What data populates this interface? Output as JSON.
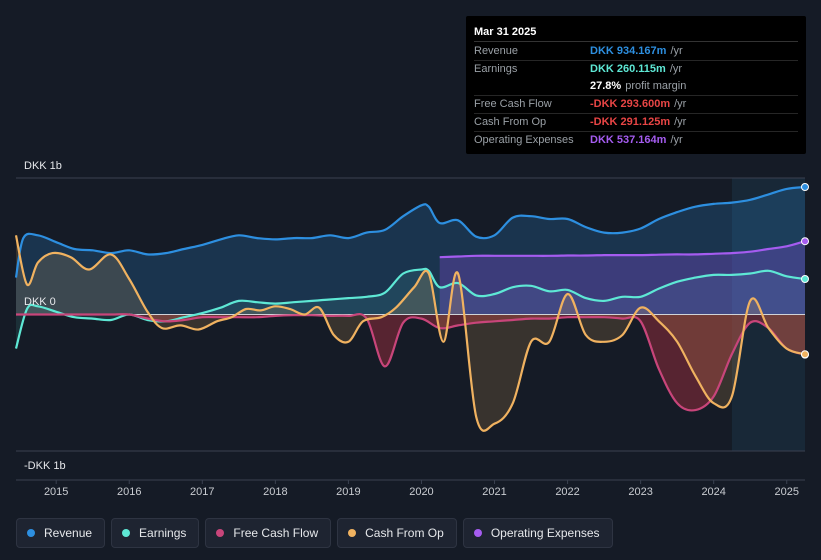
{
  "tooltip": {
    "date": "Mar 31 2025",
    "rows": [
      {
        "label": "Revenue",
        "value": "DKK 934.167m",
        "unit": "/yr",
        "color": "#2d8fe0"
      },
      {
        "label": "Earnings",
        "value": "DKK 260.115m",
        "unit": "/yr",
        "color": "#5ee8d5"
      },
      {
        "label": "",
        "value": "27.8%",
        "unit": "profit margin",
        "color": "#ffffff"
      },
      {
        "label": "Free Cash Flow",
        "value": "-DKK 293.600m",
        "unit": "/yr",
        "color": "#e84545"
      },
      {
        "label": "Cash From Op",
        "value": "-DKK 291.125m",
        "unit": "/yr",
        "color": "#e84545"
      },
      {
        "label": "Operating Expenses",
        "value": "DKK 537.164m",
        "unit": "/yr",
        "color": "#a55cf0"
      }
    ]
  },
  "legend": [
    {
      "label": "Revenue",
      "color": "#2d8fe0"
    },
    {
      "label": "Earnings",
      "color": "#5ee8d5"
    },
    {
      "label": "Free Cash Flow",
      "color": "#c8457a"
    },
    {
      "label": "Cash From Op",
      "color": "#f0b260"
    },
    {
      "label": "Operating Expenses",
      "color": "#a55cf0"
    }
  ],
  "chart_data": {
    "type": "area",
    "unit": "DKK m",
    "y_tick_labels": [
      "DKK 1b",
      "DKK 0",
      "-DKK 1b"
    ],
    "ylim": [
      -1000,
      1000
    ],
    "xlim": [
      2014.45,
      2025.25
    ],
    "x_tick_labels": [
      "2015",
      "2016",
      "2017",
      "2018",
      "2019",
      "2020",
      "2021",
      "2022",
      "2023",
      "2024",
      "2025"
    ],
    "x_ticks": [
      2015,
      2016,
      2017,
      2018,
      2019,
      2020,
      2021,
      2022,
      2023,
      2024,
      2025
    ],
    "highlight_start": 2024.25,
    "series": [
      {
        "name": "Revenue",
        "color": "#2d8fe0",
        "x": [
          2014.45,
          2014.55,
          2014.75,
          2015.0,
          2015.25,
          2015.5,
          2015.75,
          2016.0,
          2016.25,
          2016.5,
          2016.75,
          2017.0,
          2017.25,
          2017.5,
          2017.75,
          2018.0,
          2018.25,
          2018.5,
          2018.75,
          2019.0,
          2019.25,
          2019.5,
          2019.75,
          2020.0,
          2020.1,
          2020.25,
          2020.5,
          2020.75,
          2021.0,
          2021.25,
          2021.5,
          2021.75,
          2022.0,
          2022.25,
          2022.5,
          2022.75,
          2023.0,
          2023.25,
          2023.5,
          2023.75,
          2024.0,
          2024.25,
          2024.5,
          2024.75,
          2025.0,
          2025.25
        ],
        "y": [
          270,
          560,
          580,
          530,
          480,
          470,
          450,
          470,
          440,
          450,
          480,
          510,
          550,
          580,
          560,
          550,
          560,
          560,
          580,
          560,
          600,
          620,
          720,
          800,
          790,
          670,
          690,
          570,
          580,
          710,
          720,
          700,
          700,
          640,
          600,
          600,
          630,
          700,
          750,
          790,
          810,
          820,
          840,
          880,
          920,
          934
        ]
      },
      {
        "name": "Earnings",
        "color": "#5ee8d5",
        "x": [
          2014.45,
          2014.6,
          2014.75,
          2015.0,
          2015.25,
          2015.5,
          2015.75,
          2016.0,
          2016.25,
          2016.5,
          2016.75,
          2017.0,
          2017.25,
          2017.5,
          2017.75,
          2018.0,
          2018.25,
          2018.5,
          2018.75,
          2019.0,
          2019.25,
          2019.5,
          2019.75,
          2020.0,
          2020.1,
          2020.25,
          2020.5,
          2020.75,
          2021.0,
          2021.25,
          2021.5,
          2021.75,
          2022.0,
          2022.25,
          2022.5,
          2022.75,
          2023.0,
          2023.25,
          2023.5,
          2023.75,
          2024.0,
          2024.25,
          2024.5,
          2024.75,
          2025.0,
          2025.25
        ],
        "y": [
          -250,
          40,
          60,
          20,
          -20,
          -30,
          -40,
          0,
          -40,
          -50,
          -20,
          10,
          50,
          100,
          90,
          80,
          90,
          100,
          110,
          120,
          130,
          160,
          300,
          330,
          320,
          200,
          230,
          140,
          150,
          200,
          210,
          170,
          180,
          120,
          100,
          130,
          130,
          190,
          240,
          270,
          290,
          290,
          300,
          320,
          280,
          260
        ]
      },
      {
        "name": "Free Cash Flow",
        "color": "#c8457a",
        "x": [
          2014.45,
          2014.75,
          2015.0,
          2015.25,
          2015.5,
          2015.75,
          2016.0,
          2016.25,
          2016.5,
          2016.75,
          2017.0,
          2017.25,
          2017.5,
          2017.75,
          2018.0,
          2018.25,
          2018.5,
          2018.75,
          2019.0,
          2019.25,
          2019.5,
          2019.75,
          2020.0,
          2020.25,
          2020.5,
          2020.75,
          2021.0,
          2021.25,
          2021.5,
          2021.75,
          2022.0,
          2022.25,
          2022.5,
          2022.75,
          2023.0,
          2023.25,
          2023.5,
          2023.75,
          2024.0,
          2024.25,
          2024.5,
          2024.75,
          2025.0,
          2025.25
        ],
        "y": [
          0,
          0,
          0,
          0,
          0,
          0,
          0,
          -30,
          -50,
          -40,
          -20,
          -20,
          -20,
          -20,
          -10,
          -5,
          -5,
          -10,
          -10,
          -30,
          -380,
          -60,
          -30,
          -100,
          -80,
          -60,
          -50,
          -40,
          -30,
          -30,
          -20,
          -20,
          -20,
          -30,
          -50,
          -400,
          -650,
          -700,
          -600,
          -290,
          -60,
          -100,
          -250,
          -294
        ]
      },
      {
        "name": "Cash From Op",
        "color": "#f0b260",
        "x": [
          2014.45,
          2014.6,
          2014.75,
          2014.95,
          2015.2,
          2015.45,
          2015.75,
          2016.0,
          2016.25,
          2016.45,
          2016.7,
          2016.95,
          2017.2,
          2017.4,
          2017.6,
          2017.8,
          2018.0,
          2018.2,
          2018.4,
          2018.6,
          2018.8,
          2019.0,
          2019.2,
          2019.45,
          2019.65,
          2019.9,
          2020.1,
          2020.3,
          2020.5,
          2020.75,
          2021.0,
          2021.25,
          2021.5,
          2021.75,
          2022.0,
          2022.25,
          2022.5,
          2022.75,
          2023.0,
          2023.25,
          2023.5,
          2023.75,
          2024.0,
          2024.25,
          2024.5,
          2024.75,
          2025.0,
          2025.25
        ],
        "y": [
          580,
          220,
          380,
          450,
          420,
          330,
          440,
          260,
          20,
          -100,
          -80,
          -110,
          -50,
          -20,
          40,
          30,
          60,
          40,
          0,
          50,
          -150,
          -200,
          -50,
          -20,
          50,
          200,
          300,
          -200,
          300,
          -750,
          -800,
          -650,
          -200,
          -200,
          150,
          -150,
          -200,
          -150,
          50,
          -50,
          -200,
          -450,
          -650,
          -600,
          100,
          -100,
          -250,
          -291
        ]
      },
      {
        "name": "Operating Expenses",
        "color": "#a55cf0",
        "x": [
          2020.25,
          2020.5,
          2020.75,
          2021.0,
          2021.25,
          2021.5,
          2021.75,
          2022.0,
          2022.25,
          2022.5,
          2022.75,
          2023.0,
          2023.25,
          2023.5,
          2023.75,
          2024.0,
          2024.25,
          2024.5,
          2024.75,
          2025.0,
          2025.25
        ],
        "y": [
          420,
          425,
          430,
          430,
          430,
          430,
          430,
          432,
          432,
          435,
          435,
          435,
          438,
          440,
          440,
          445,
          450,
          460,
          480,
          500,
          537
        ]
      }
    ]
  }
}
